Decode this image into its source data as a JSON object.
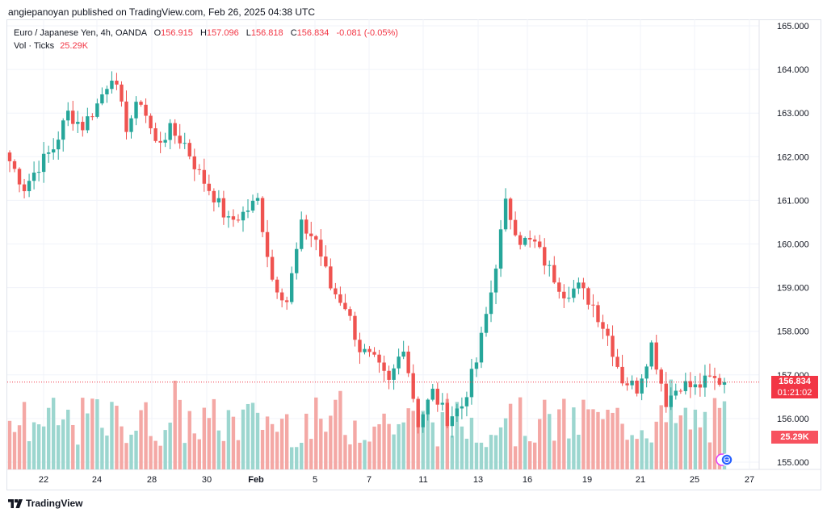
{
  "header": {
    "publisher_line": "angiepanoyan published on TradingView.com, Feb 26, 2025 04:38 UTC"
  },
  "legend": {
    "symbol": "Euro / Japanese Yen, 4h, OANDA",
    "open_label": "O",
    "open": "156.915",
    "high_label": "H",
    "high": "157.096",
    "low_label": "L",
    "low": "156.818",
    "close_label": "C",
    "close": "156.834",
    "change": "-0.081 (-0.05%)",
    "volume_label": "Vol · Ticks",
    "volume_value": "25.29K"
  },
  "price_tag": {
    "price": "156.834",
    "countdown": "01:21:02"
  },
  "volume_tag": {
    "value": "25.29K"
  },
  "footer": {
    "brand": "TradingView"
  },
  "colors": {
    "up": "#26a69a",
    "down": "#ef5350",
    "up_vol": "#9cd6cf",
    "down_vol": "#f4a8a5",
    "price_line": "#f23645"
  },
  "chart_data": {
    "type": "candlestick",
    "title": "Euro / Japanese Yen, 4h, OANDA",
    "xlabel": "",
    "ylabel": "",
    "ylim": [
      154.85,
      165.15
    ],
    "y_ticks": [
      "165.000",
      "164.000",
      "163.000",
      "162.000",
      "161.000",
      "160.000",
      "159.000",
      "158.000",
      "157.000",
      "156.000",
      "155.000"
    ],
    "x_ticks": [
      "22",
      "24",
      "28",
      "30",
      "Feb",
      "5",
      "7",
      "11",
      "13",
      "16",
      "19",
      "21",
      "25",
      "27"
    ],
    "grid": true,
    "last_price": 156.834,
    "ohlc_anchor_closes": [
      161.9,
      161.3,
      161.8,
      162.2,
      163.0,
      162.7,
      163.2,
      163.9,
      162.7,
      163.3,
      162.3,
      162.6,
      162.3,
      161.6,
      161.1,
      160.5,
      160.7,
      161.0,
      159.2,
      158.7,
      160.4,
      160.1,
      159.0,
      158.6,
      157.6,
      157.3,
      156.8,
      157.7,
      155.9,
      156.6,
      156.0,
      156.3,
      157.3,
      158.9,
      160.9,
      160.1,
      160.0,
      159.4,
      158.9,
      159.0,
      158.6,
      157.9,
      156.9,
      156.7,
      157.7,
      156.4,
      156.8,
      156.7,
      156.9,
      156.834
    ],
    "volume_range": [
      0,
      34
    ]
  }
}
